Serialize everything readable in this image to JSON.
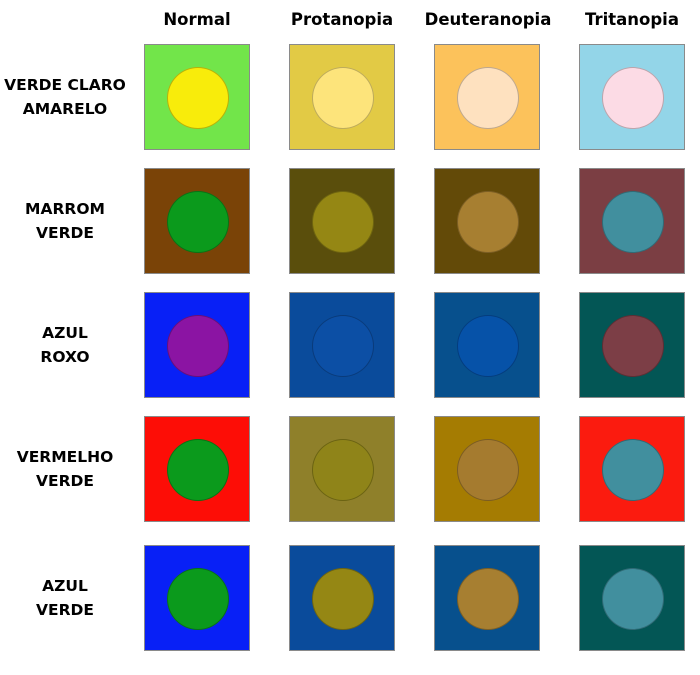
{
  "columns": [
    "Normal",
    "Protanopia",
    "Deuteranopia",
    "Tritanopia"
  ],
  "rows": [
    {
      "label_lines": [
        "VERDE CLARO",
        "AMARELO"
      ],
      "cells": [
        {
          "bg": "#72e54a",
          "dot": "#f8ec0b"
        },
        {
          "bg": "#e2ca45",
          "dot": "#fde47b"
        },
        {
          "bg": "#fcc25b",
          "dot": "#fee1bf"
        },
        {
          "bg": "#93d5e8",
          "dot": "#fcdbe5"
        }
      ]
    },
    {
      "label_lines": [
        "MARROM",
        "VERDE"
      ],
      "cells": [
        {
          "bg": "#7a4307",
          "dot": "#0b9a1c"
        },
        {
          "bg": "#5a4e0c",
          "dot": "#958714"
        },
        {
          "bg": "#634a08",
          "dot": "#a77f31"
        },
        {
          "bg": "#7b3e43",
          "dot": "#418f9e"
        }
      ]
    },
    {
      "label_lines": [
        "AZUL",
        "ROXO"
      ],
      "cells": [
        {
          "bg": "#0820f6",
          "dot": "#8b14a3"
        },
        {
          "bg": "#0a4b9b",
          "dot": "#0c4fa5"
        },
        {
          "bg": "#07508d",
          "dot": "#0652a8"
        },
        {
          "bg": "#035655",
          "dot": "#7c3e46"
        }
      ]
    },
    {
      "label_lines": [
        "VERMELHO",
        "VERDE"
      ],
      "cells": [
        {
          "bg": "#fd0d06",
          "dot": "#0b9a1c"
        },
        {
          "bg": "#8f802a",
          "dot": "#8f8419"
        },
        {
          "bg": "#a57c02",
          "dot": "#a57b2f"
        },
        {
          "bg": "#fb1b0f",
          "dot": "#418f9e"
        }
      ]
    },
    {
      "label_lines": [
        "AZUL",
        "VERDE"
      ],
      "cells": [
        {
          "bg": "#0820f6",
          "dot": "#0b9a1c"
        },
        {
          "bg": "#0a4b9b",
          "dot": "#958714"
        },
        {
          "bg": "#07508d",
          "dot": "#a77f31"
        },
        {
          "bg": "#035655",
          "dot": "#418f9e"
        }
      ]
    }
  ]
}
